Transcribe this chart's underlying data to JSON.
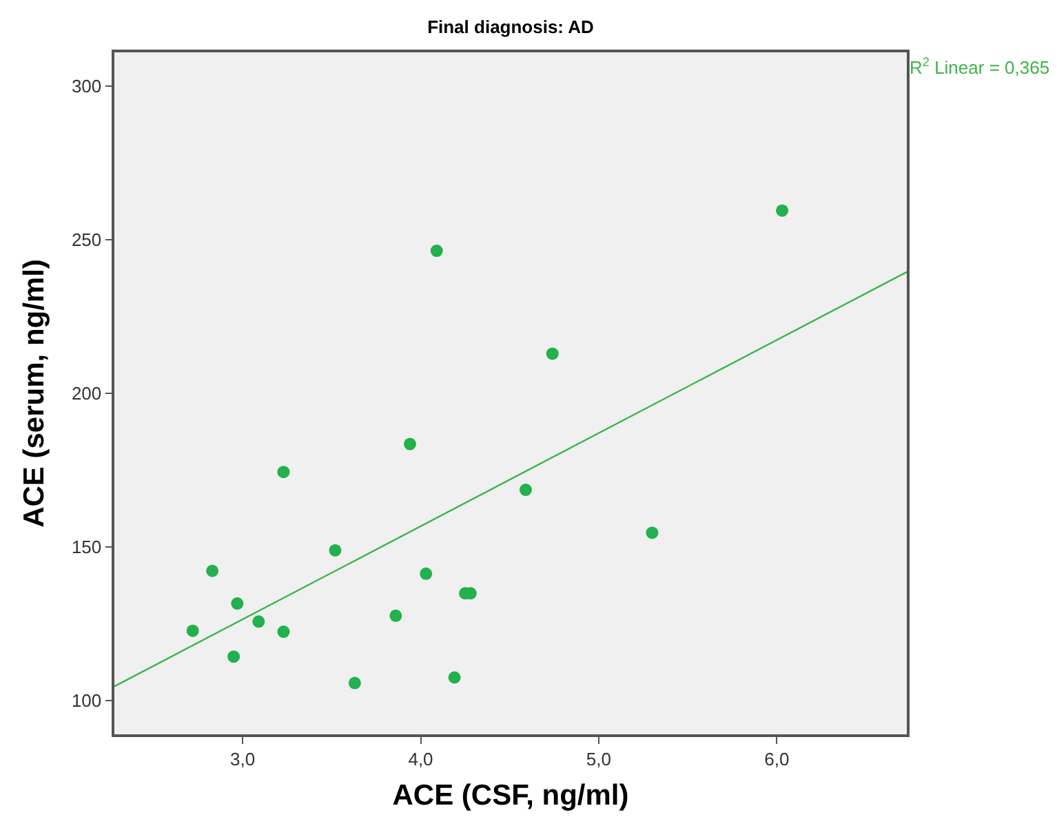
{
  "chart_data": {
    "type": "scatter",
    "title": "Final diagnosis: AD",
    "xlabel": "ACE (CSF, ng/ml)",
    "ylabel": "ACE (serum, ng/ml)",
    "annotations": [
      "R$^{2}$ Linear = 0,365"
    ],
    "xlim": [
      2.28,
      6.73
    ],
    "ylim": [
      89,
      311
    ],
    "xticks": [
      {
        "value": 3,
        "label": "3,0"
      },
      {
        "value": 4,
        "label": "4,0"
      },
      {
        "value": 5,
        "label": "5,0"
      },
      {
        "value": 6,
        "label": "6,0"
      }
    ],
    "yticks": [
      100,
      150,
      200,
      250,
      300
    ],
    "grid": false,
    "series": [
      {
        "marker": "circle",
        "color": "#22b14c",
        "x": [
          4.09,
          4.74,
          6.03,
          5.3,
          3.23,
          3.94,
          4.59,
          3.52,
          2.83,
          4.03,
          4.25,
          4.28,
          2.97,
          3.09,
          3.86,
          2.72,
          3.23,
          2.95,
          3.63,
          4.19
        ],
        "values": [
          246.4,
          212.9,
          259.5,
          154.6,
          174.4,
          183.5,
          168.6,
          148.9,
          142.2,
          141.3,
          134.9,
          134.9,
          131.6,
          125.7,
          127.6,
          122.7,
          122.4,
          114.3,
          105.7,
          107.5
        ]
      },
      {
        "type": "line",
        "marker": "none",
        "color": "#3cb44b",
        "line_style": "solid",
        "x": [
          2.28,
          6.73
        ],
        "values": [
          104.6,
          239.5
        ]
      }
    ]
  }
}
